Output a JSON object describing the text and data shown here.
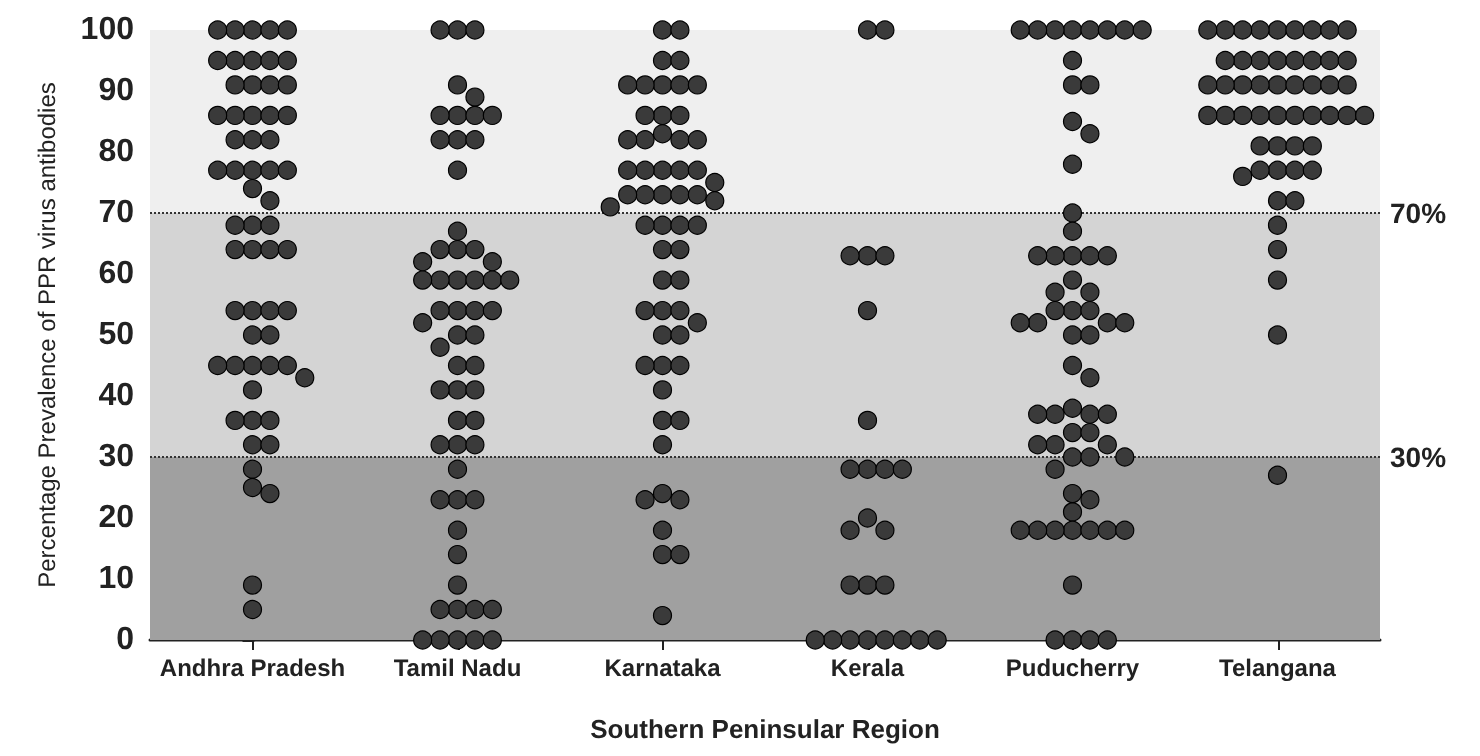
{
  "chart_data": {
    "type": "scatter",
    "xlabel": "Southern Peninsular Region",
    "ylabel": "Percentage Prevalence of PPR virus antibodies",
    "categories": [
      "Andhra Pradesh",
      "Tamil Nadu",
      "Karnataka",
      "Kerala",
      "Puducherry",
      "Telangana"
    ],
    "ylim": [
      0,
      100
    ],
    "yticks": [
      0,
      10,
      20,
      30,
      40,
      50,
      60,
      70,
      80,
      90,
      100
    ],
    "marker": "circle",
    "bands": [
      {
        "axis": "y",
        "from": 0,
        "to": 30,
        "color": "#a0a0a0"
      },
      {
        "axis": "y",
        "from": 30,
        "to": 70,
        "color": "#d4d4d4"
      },
      {
        "axis": "y",
        "from": 70,
        "to": 100,
        "color": "#efefef"
      }
    ],
    "ref_lines": [
      {
        "axis": "y",
        "value": 30,
        "label": "30%",
        "line_style": "dotted"
      },
      {
        "axis": "y",
        "value": 70,
        "label": "70%",
        "line_style": "dotted"
      }
    ],
    "series": [
      {
        "color": "#3a3a3a",
        "x": [
          "Andhra Pradesh",
          "Andhra Pradesh",
          "Andhra Pradesh",
          "Andhra Pradesh",
          "Andhra Pradesh",
          "Andhra Pradesh",
          "Andhra Pradesh",
          "Andhra Pradesh",
          "Andhra Pradesh",
          "Andhra Pradesh",
          "Andhra Pradesh",
          "Andhra Pradesh",
          "Andhra Pradesh",
          "Andhra Pradesh",
          "Andhra Pradesh",
          "Andhra Pradesh",
          "Andhra Pradesh",
          "Andhra Pradesh",
          "Andhra Pradesh",
          "Andhra Pradesh",
          "Andhra Pradesh",
          "Andhra Pradesh",
          "Andhra Pradesh",
          "Andhra Pradesh",
          "Andhra Pradesh",
          "Andhra Pradesh",
          "Andhra Pradesh",
          "Andhra Pradesh",
          "Andhra Pradesh",
          "Andhra Pradesh",
          "Andhra Pradesh",
          "Andhra Pradesh",
          "Andhra Pradesh",
          "Andhra Pradesh",
          "Andhra Pradesh",
          "Andhra Pradesh",
          "Andhra Pradesh",
          "Andhra Pradesh",
          "Andhra Pradesh",
          "Andhra Pradesh",
          "Andhra Pradesh",
          "Andhra Pradesh",
          "Andhra Pradesh",
          "Andhra Pradesh",
          "Andhra Pradesh",
          "Andhra Pradesh",
          "Andhra Pradesh",
          "Andhra Pradesh",
          "Andhra Pradesh",
          "Andhra Pradesh",
          "Andhra Pradesh",
          "Andhra Pradesh",
          "Andhra Pradesh",
          "Andhra Pradesh",
          "Andhra Pradesh",
          "Andhra Pradesh",
          "Andhra Pradesh",
          "Andhra Pradesh",
          "Andhra Pradesh"
        ],
        "values": [
          100,
          100,
          100,
          100,
          100,
          95,
          95,
          95,
          95,
          95,
          91,
          91,
          91,
          91,
          86,
          86,
          86,
          86,
          86,
          82,
          82,
          82,
          77,
          77,
          77,
          77,
          77,
          74,
          72,
          68,
          68,
          68,
          64,
          64,
          64,
          64,
          54,
          54,
          54,
          54,
          50,
          50,
          45,
          45,
          45,
          45,
          45,
          43,
          41,
          36,
          36,
          36,
          32,
          32,
          28,
          25,
          24,
          9,
          5
        ]
      },
      {
        "color": "#3a3a3a",
        "x": [
          "Tamil Nadu",
          "Tamil Nadu",
          "Tamil Nadu",
          "Tamil Nadu",
          "Tamil Nadu",
          "Tamil Nadu",
          "Tamil Nadu",
          "Tamil Nadu",
          "Tamil Nadu",
          "Tamil Nadu",
          "Tamil Nadu",
          "Tamil Nadu",
          "Tamil Nadu",
          "Tamil Nadu",
          "Tamil Nadu",
          "Tamil Nadu",
          "Tamil Nadu",
          "Tamil Nadu",
          "Tamil Nadu",
          "Tamil Nadu",
          "Tamil Nadu",
          "Tamil Nadu",
          "Tamil Nadu",
          "Tamil Nadu",
          "Tamil Nadu",
          "Tamil Nadu",
          "Tamil Nadu",
          "Tamil Nadu",
          "Tamil Nadu",
          "Tamil Nadu",
          "Tamil Nadu",
          "Tamil Nadu",
          "Tamil Nadu",
          "Tamil Nadu",
          "Tamil Nadu",
          "Tamil Nadu",
          "Tamil Nadu",
          "Tamil Nadu",
          "Tamil Nadu",
          "Tamil Nadu",
          "Tamil Nadu",
          "Tamil Nadu",
          "Tamil Nadu",
          "Tamil Nadu",
          "Tamil Nadu",
          "Tamil Nadu",
          "Tamil Nadu",
          "Tamil Nadu",
          "Tamil Nadu",
          "Tamil Nadu",
          "Tamil Nadu",
          "Tamil Nadu",
          "Tamil Nadu",
          "Tamil Nadu",
          "Tamil Nadu",
          "Tamil Nadu",
          "Tamil Nadu",
          "Tamil Nadu",
          "Tamil Nadu"
        ],
        "values": [
          100,
          100,
          100,
          91,
          89,
          86,
          86,
          86,
          86,
          82,
          82,
          82,
          77,
          67,
          64,
          64,
          64,
          62,
          62,
          59,
          59,
          59,
          59,
          59,
          59,
          54,
          54,
          54,
          54,
          52,
          50,
          50,
          48,
          45,
          45,
          41,
          41,
          41,
          36,
          36,
          32,
          32,
          32,
          28,
          23,
          23,
          23,
          18,
          14,
          9,
          5,
          5,
          5,
          5,
          0,
          0,
          0,
          0,
          0
        ]
      },
      {
        "color": "#3a3a3a",
        "x": [
          "Karnataka",
          "Karnataka",
          "Karnataka",
          "Karnataka",
          "Karnataka",
          "Karnataka",
          "Karnataka",
          "Karnataka",
          "Karnataka",
          "Karnataka",
          "Karnataka",
          "Karnataka",
          "Karnataka",
          "Karnataka",
          "Karnataka",
          "Karnataka",
          "Karnataka",
          "Karnataka",
          "Karnataka",
          "Karnataka",
          "Karnataka",
          "Karnataka",
          "Karnataka",
          "Karnataka",
          "Karnataka",
          "Karnataka",
          "Karnataka",
          "Karnataka",
          "Karnataka",
          "Karnataka",
          "Karnataka",
          "Karnataka",
          "Karnataka",
          "Karnataka",
          "Karnataka",
          "Karnataka",
          "Karnataka",
          "Karnataka",
          "Karnataka",
          "Karnataka",
          "Karnataka",
          "Karnataka",
          "Karnataka",
          "Karnataka",
          "Karnataka",
          "Karnataka",
          "Karnataka",
          "Karnataka",
          "Karnataka",
          "Karnataka",
          "Karnataka",
          "Karnataka",
          "Karnataka",
          "Karnataka",
          "Karnataka",
          "Karnataka",
          "Karnataka",
          "Karnataka"
        ],
        "values": [
          100,
          100,
          95,
          95,
          91,
          91,
          91,
          91,
          91,
          86,
          86,
          86,
          83,
          82,
          82,
          82,
          82,
          77,
          77,
          77,
          77,
          77,
          75,
          73,
          73,
          73,
          73,
          73,
          72,
          71,
          68,
          68,
          68,
          68,
          64,
          64,
          59,
          59,
          54,
          54,
          54,
          52,
          50,
          50,
          45,
          45,
          45,
          41,
          36,
          36,
          32,
          24,
          23,
          23,
          18,
          14,
          14,
          4
        ]
      },
      {
        "color": "#3a3a3a",
        "x": [
          "Kerala",
          "Kerala",
          "Kerala",
          "Kerala",
          "Kerala",
          "Kerala",
          "Kerala",
          "Kerala",
          "Kerala",
          "Kerala",
          "Kerala",
          "Kerala",
          "Kerala",
          "Kerala",
          "Kerala",
          "Kerala",
          "Kerala",
          "Kerala",
          "Kerala",
          "Kerala",
          "Kerala",
          "Kerala",
          "Kerala",
          "Kerala",
          "Kerala"
        ],
        "values": [
          100,
          100,
          63,
          63,
          63,
          54,
          36,
          28,
          28,
          28,
          28,
          20,
          18,
          18,
          9,
          9,
          9,
          0,
          0,
          0,
          0,
          0,
          0,
          0,
          0
        ]
      },
      {
        "color": "#3a3a3a",
        "x": [
          "Puducherry",
          "Puducherry",
          "Puducherry",
          "Puducherry",
          "Puducherry",
          "Puducherry",
          "Puducherry",
          "Puducherry",
          "Puducherry",
          "Puducherry",
          "Puducherry",
          "Puducherry",
          "Puducherry",
          "Puducherry",
          "Puducherry",
          "Puducherry",
          "Puducherry",
          "Puducherry",
          "Puducherry",
          "Puducherry",
          "Puducherry",
          "Puducherry",
          "Puducherry",
          "Puducherry",
          "Puducherry",
          "Puducherry",
          "Puducherry",
          "Puducherry",
          "Puducherry",
          "Puducherry",
          "Puducherry",
          "Puducherry",
          "Puducherry",
          "Puducherry",
          "Puducherry",
          "Puducherry",
          "Puducherry",
          "Puducherry",
          "Puducherry",
          "Puducherry",
          "Puducherry",
          "Puducherry",
          "Puducherry",
          "Puducherry",
          "Puducherry",
          "Puducherry",
          "Puducherry",
          "Puducherry",
          "Puducherry",
          "Puducherry",
          "Puducherry",
          "Puducherry",
          "Puducherry",
          "Puducherry",
          "Puducherry",
          "Puducherry",
          "Puducherry",
          "Puducherry",
          "Puducherry",
          "Puducherry",
          "Puducherry",
          "Puducherry",
          "Puducherry",
          "Puducherry"
        ],
        "values": [
          100,
          100,
          100,
          100,
          100,
          100,
          100,
          100,
          95,
          91,
          91,
          85,
          83,
          78,
          70,
          67,
          63,
          63,
          63,
          63,
          63,
          59,
          57,
          57,
          54,
          54,
          54,
          52,
          52,
          52,
          52,
          50,
          50,
          45,
          43,
          38,
          37,
          37,
          37,
          37,
          34,
          34,
          32,
          32,
          32,
          30,
          30,
          30,
          28,
          24,
          23,
          21,
          18,
          18,
          18,
          18,
          18,
          18,
          18,
          9,
          0,
          0,
          0,
          0
        ]
      },
      {
        "color": "#3a3a3a",
        "x": [
          "Telangana",
          "Telangana",
          "Telangana",
          "Telangana",
          "Telangana",
          "Telangana",
          "Telangana",
          "Telangana",
          "Telangana",
          "Telangana",
          "Telangana",
          "Telangana",
          "Telangana",
          "Telangana",
          "Telangana",
          "Telangana",
          "Telangana",
          "Telangana",
          "Telangana",
          "Telangana",
          "Telangana",
          "Telangana",
          "Telangana",
          "Telangana",
          "Telangana",
          "Telangana",
          "Telangana",
          "Telangana",
          "Telangana",
          "Telangana",
          "Telangana",
          "Telangana",
          "Telangana",
          "Telangana",
          "Telangana",
          "Telangana",
          "Telangana",
          "Telangana",
          "Telangana",
          "Telangana",
          "Telangana",
          "Telangana",
          "Telangana",
          "Telangana",
          "Telangana",
          "Telangana",
          "Telangana",
          "Telangana",
          "Telangana",
          "Telangana",
          "Telangana",
          "Telangana"
        ],
        "values": [
          100,
          100,
          100,
          100,
          100,
          100,
          100,
          100,
          100,
          95,
          95,
          95,
          95,
          95,
          95,
          95,
          95,
          91,
          91,
          91,
          91,
          91,
          91,
          91,
          91,
          91,
          86,
          86,
          86,
          86,
          86,
          86,
          86,
          86,
          86,
          86,
          81,
          81,
          81,
          81,
          77,
          77,
          77,
          77,
          76,
          72,
          72,
          68,
          64,
          59,
          50,
          27
        ]
      }
    ]
  }
}
